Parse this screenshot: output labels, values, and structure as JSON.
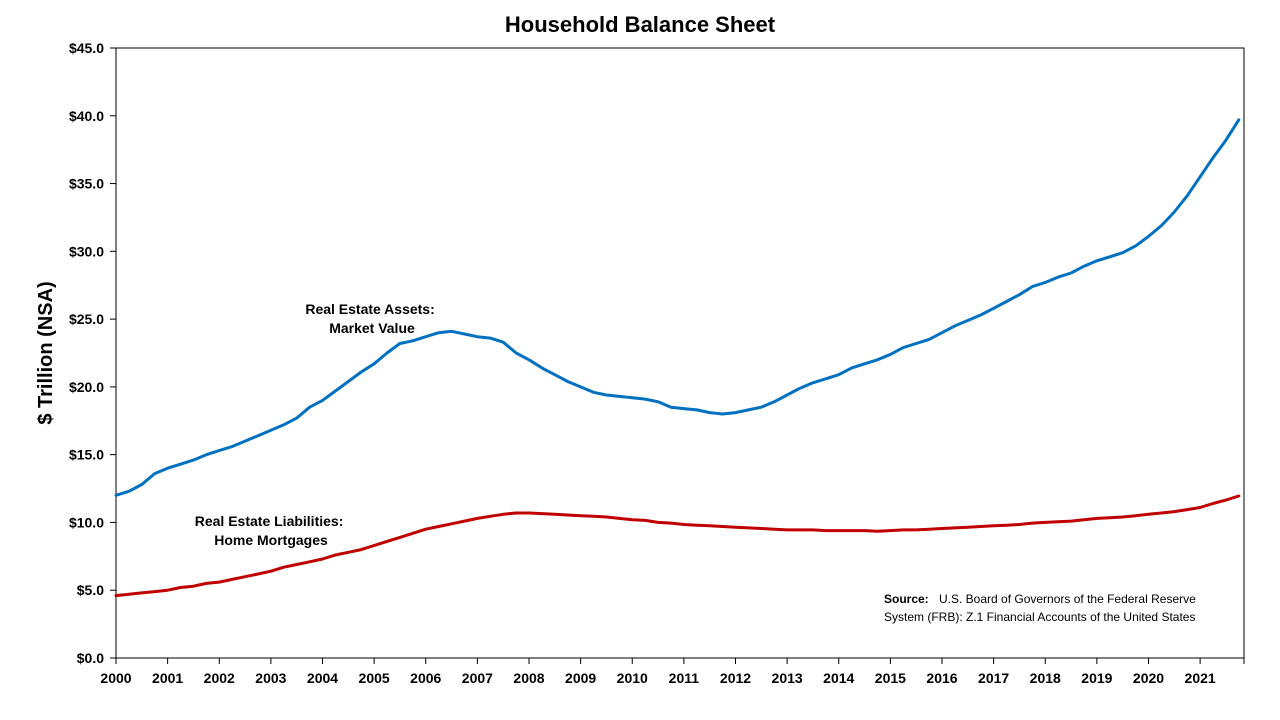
{
  "chart_data": {
    "type": "line",
    "title": "Household Balance Sheet",
    "xlabel": "",
    "ylabel": "$ Trillion (NSA)",
    "xlim": [
      2000,
      2021.85
    ],
    "ylim": [
      0,
      45
    ],
    "grid": false,
    "y_ticks": [
      "$0.0",
      "$5.0",
      "$10.0",
      "$15.0",
      "$20.0",
      "$25.0",
      "$30.0",
      "$35.0",
      "$40.0",
      "$45.0"
    ],
    "x_ticks": [
      "2000",
      "2001",
      "2002",
      "2003",
      "2004",
      "2005",
      "2006",
      "2007",
      "2008",
      "2009",
      "2010",
      "2011",
      "2012",
      "2013",
      "2014",
      "2015",
      "2016",
      "2017",
      "2018",
      "2019",
      "2020",
      "2021"
    ],
    "series": [
      {
        "name": "Real Estate Assets: Market Value",
        "color": "#0070C0",
        "points": [
          [
            2000.0,
            12.0
          ],
          [
            2000.25,
            12.3
          ],
          [
            2000.5,
            12.8
          ],
          [
            2000.75,
            13.6
          ],
          [
            2001.0,
            14.0
          ],
          [
            2001.25,
            14.3
          ],
          [
            2001.5,
            14.6
          ],
          [
            2001.75,
            15.0
          ],
          [
            2002.0,
            15.3
          ],
          [
            2002.25,
            15.6
          ],
          [
            2002.5,
            16.0
          ],
          [
            2002.75,
            16.4
          ],
          [
            2003.0,
            16.8
          ],
          [
            2003.25,
            17.2
          ],
          [
            2003.5,
            17.7
          ],
          [
            2003.75,
            18.5
          ],
          [
            2004.0,
            19.0
          ],
          [
            2004.25,
            19.7
          ],
          [
            2004.5,
            20.4
          ],
          [
            2004.75,
            21.1
          ],
          [
            2005.0,
            21.7
          ],
          [
            2005.25,
            22.5
          ],
          [
            2005.5,
            23.2
          ],
          [
            2005.75,
            23.4
          ],
          [
            2006.0,
            23.7
          ],
          [
            2006.25,
            24.0
          ],
          [
            2006.5,
            24.1
          ],
          [
            2006.75,
            23.9
          ],
          [
            2007.0,
            23.7
          ],
          [
            2007.25,
            23.6
          ],
          [
            2007.5,
            23.3
          ],
          [
            2007.75,
            22.5
          ],
          [
            2008.0,
            22.0
          ],
          [
            2008.25,
            21.4
          ],
          [
            2008.5,
            20.9
          ],
          [
            2008.75,
            20.4
          ],
          [
            2009.0,
            20.0
          ],
          [
            2009.25,
            19.6
          ],
          [
            2009.5,
            19.4
          ],
          [
            2009.75,
            19.3
          ],
          [
            2010.0,
            19.2
          ],
          [
            2010.25,
            19.1
          ],
          [
            2010.5,
            18.9
          ],
          [
            2010.75,
            18.5
          ],
          [
            2011.0,
            18.4
          ],
          [
            2011.25,
            18.3
          ],
          [
            2011.5,
            18.1
          ],
          [
            2011.75,
            18.0
          ],
          [
            2012.0,
            18.1
          ],
          [
            2012.25,
            18.3
          ],
          [
            2012.5,
            18.5
          ],
          [
            2012.75,
            18.9
          ],
          [
            2013.0,
            19.4
          ],
          [
            2013.25,
            19.9
          ],
          [
            2013.5,
            20.3
          ],
          [
            2013.75,
            20.6
          ],
          [
            2014.0,
            20.9
          ],
          [
            2014.25,
            21.4
          ],
          [
            2014.5,
            21.7
          ],
          [
            2014.75,
            22.0
          ],
          [
            2015.0,
            22.4
          ],
          [
            2015.25,
            22.9
          ],
          [
            2015.5,
            23.2
          ],
          [
            2015.75,
            23.5
          ],
          [
            2016.0,
            24.0
          ],
          [
            2016.25,
            24.5
          ],
          [
            2016.5,
            24.9
          ],
          [
            2016.75,
            25.3
          ],
          [
            2017.0,
            25.8
          ],
          [
            2017.25,
            26.3
          ],
          [
            2017.5,
            26.8
          ],
          [
            2017.75,
            27.4
          ],
          [
            2018.0,
            27.7
          ],
          [
            2018.25,
            28.1
          ],
          [
            2018.5,
            28.4
          ],
          [
            2018.75,
            28.9
          ],
          [
            2019.0,
            29.3
          ],
          [
            2019.25,
            29.6
          ],
          [
            2019.5,
            29.9
          ],
          [
            2019.75,
            30.4
          ],
          [
            2020.0,
            31.1
          ],
          [
            2020.25,
            31.9
          ],
          [
            2020.5,
            32.9
          ],
          [
            2020.75,
            34.1
          ],
          [
            2021.0,
            35.5
          ],
          [
            2021.25,
            36.9
          ],
          [
            2021.5,
            38.2
          ],
          [
            2021.75,
            39.7
          ]
        ]
      },
      {
        "name": "Real Estate Liabilities: Home Mortgages",
        "color": "#C00000",
        "points": [
          [
            2000.0,
            4.6
          ],
          [
            2000.25,
            4.7
          ],
          [
            2000.5,
            4.8
          ],
          [
            2000.75,
            4.9
          ],
          [
            2001.0,
            5.0
          ],
          [
            2001.25,
            5.2
          ],
          [
            2001.5,
            5.3
          ],
          [
            2001.75,
            5.5
          ],
          [
            2002.0,
            5.6
          ],
          [
            2002.25,
            5.8
          ],
          [
            2002.5,
            6.0
          ],
          [
            2002.75,
            6.2
          ],
          [
            2003.0,
            6.4
          ],
          [
            2003.25,
            6.7
          ],
          [
            2003.5,
            6.9
          ],
          [
            2003.75,
            7.1
          ],
          [
            2004.0,
            7.3
          ],
          [
            2004.25,
            7.6
          ],
          [
            2004.5,
            7.8
          ],
          [
            2004.75,
            8.0
          ],
          [
            2005.0,
            8.3
          ],
          [
            2005.25,
            8.6
          ],
          [
            2005.5,
            8.9
          ],
          [
            2005.75,
            9.2
          ],
          [
            2006.0,
            9.5
          ],
          [
            2006.25,
            9.7
          ],
          [
            2006.5,
            9.9
          ],
          [
            2006.75,
            10.1
          ],
          [
            2007.0,
            10.3
          ],
          [
            2007.25,
            10.45
          ],
          [
            2007.5,
            10.6
          ],
          [
            2007.75,
            10.7
          ],
          [
            2008.0,
            10.7
          ],
          [
            2008.25,
            10.65
          ],
          [
            2008.5,
            10.6
          ],
          [
            2008.75,
            10.55
          ],
          [
            2009.0,
            10.5
          ],
          [
            2009.25,
            10.45
          ],
          [
            2009.5,
            10.4
          ],
          [
            2009.75,
            10.3
          ],
          [
            2010.0,
            10.2
          ],
          [
            2010.25,
            10.15
          ],
          [
            2010.5,
            10.0
          ],
          [
            2010.75,
            9.95
          ],
          [
            2011.0,
            9.85
          ],
          [
            2011.25,
            9.8
          ],
          [
            2011.5,
            9.75
          ],
          [
            2011.75,
            9.7
          ],
          [
            2012.0,
            9.65
          ],
          [
            2012.25,
            9.6
          ],
          [
            2012.5,
            9.55
          ],
          [
            2012.75,
            9.5
          ],
          [
            2013.0,
            9.45
          ],
          [
            2013.25,
            9.45
          ],
          [
            2013.5,
            9.45
          ],
          [
            2013.75,
            9.4
          ],
          [
            2014.0,
            9.4
          ],
          [
            2014.25,
            9.4
          ],
          [
            2014.5,
            9.4
          ],
          [
            2014.75,
            9.35
          ],
          [
            2015.0,
            9.4
          ],
          [
            2015.25,
            9.45
          ],
          [
            2015.5,
            9.45
          ],
          [
            2015.75,
            9.5
          ],
          [
            2016.0,
            9.55
          ],
          [
            2016.25,
            9.6
          ],
          [
            2016.5,
            9.65
          ],
          [
            2016.75,
            9.7
          ],
          [
            2017.0,
            9.75
          ],
          [
            2017.25,
            9.8
          ],
          [
            2017.5,
            9.85
          ],
          [
            2017.75,
            9.95
          ],
          [
            2018.0,
            10.0
          ],
          [
            2018.25,
            10.05
          ],
          [
            2018.5,
            10.1
          ],
          [
            2018.75,
            10.2
          ],
          [
            2019.0,
            10.3
          ],
          [
            2019.25,
            10.35
          ],
          [
            2019.5,
            10.4
          ],
          [
            2019.75,
            10.5
          ],
          [
            2020.0,
            10.6
          ],
          [
            2020.25,
            10.7
          ],
          [
            2020.5,
            10.8
          ],
          [
            2020.75,
            10.95
          ],
          [
            2021.0,
            11.1
          ],
          [
            2021.25,
            11.4
          ],
          [
            2021.5,
            11.65
          ],
          [
            2021.75,
            11.95
          ]
        ]
      }
    ],
    "annotations": [
      {
        "lines": [
          "Real Estate Assets:",
          "Market Value"
        ]
      },
      {
        "lines": [
          "Real Estate Liabilities:",
          "Home Mortgages"
        ]
      }
    ],
    "source": {
      "label": "Source:",
      "line1": "U.S. Board of Governors of the Federal Reserve",
      "line2": "System (FRB): Z.1 Financial Accounts of the United States"
    }
  }
}
